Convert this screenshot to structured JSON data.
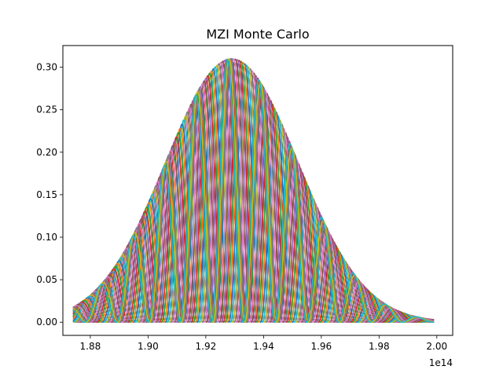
{
  "chart_data": {
    "type": "line",
    "title": "MZI Monte Carlo",
    "xlabel": "",
    "ylabel": "",
    "x_offset_label": "1e14",
    "x_scale_factor": 100000000000000.0,
    "xlim": [
      187050000000000.0,
      200550000000000.0
    ],
    "ylim": [
      -0.0155,
      0.3255
    ],
    "x_range": [
      187400000000000.0,
      199900000000000.0
    ],
    "grid": false,
    "legend": "none",
    "x_ticks": [
      188000000000000.0,
      190000000000000.0,
      192000000000000.0,
      194000000000000.0,
      196000000000000.0,
      198000000000000.0,
      200000000000000.0
    ],
    "x_tick_labels": [
      "1.88",
      "1.90",
      "1.92",
      "1.94",
      "1.96",
      "1.98",
      "2.00"
    ],
    "y_ticks": [
      0.0,
      0.05,
      0.1,
      0.15,
      0.2,
      0.25,
      0.3
    ],
    "y_tick_labels": [
      "0.00",
      "0.05",
      "0.10",
      "0.15",
      "0.20",
      "0.25",
      "0.30"
    ],
    "envelope": {
      "peak": 0.31,
      "center": 192900000000000.0,
      "sigma": 2300000000000.0
    },
    "fringe_period": 1100000000000.0,
    "series": [
      {
        "phase_offset": 0.0,
        "color": "#1f77b4"
      },
      {
        "phase_offset": 0.37,
        "color": "#ff7f0e"
      },
      {
        "phase_offset": 0.74,
        "color": "#2ca02c"
      },
      {
        "phase_offset": 1.11,
        "color": "#d62728"
      },
      {
        "phase_offset": 1.48,
        "color": "#9467bd"
      },
      {
        "phase_offset": 1.85,
        "color": "#8c564b"
      },
      {
        "phase_offset": 2.22,
        "color": "#e377c2"
      },
      {
        "phase_offset": 2.59,
        "color": "#7f7f7f"
      },
      {
        "phase_offset": 2.96,
        "color": "#bcbd22"
      },
      {
        "phase_offset": 3.33,
        "color": "#17becf"
      },
      {
        "phase_offset": 3.7,
        "color": "#1f77b4"
      },
      {
        "phase_offset": 4.07,
        "color": "#ff7f0e"
      },
      {
        "phase_offset": 4.44,
        "color": "#2ca02c"
      },
      {
        "phase_offset": 4.81,
        "color": "#d62728"
      },
      {
        "phase_offset": 5.18,
        "color": "#9467bd"
      },
      {
        "phase_offset": 5.55,
        "color": "#8c564b"
      },
      {
        "phase_offset": 5.92,
        "color": "#e377c2"
      },
      {
        "phase_offset": 0.19,
        "color": "#7f7f7f"
      },
      {
        "phase_offset": 0.56,
        "color": "#bcbd22"
      },
      {
        "phase_offset": 0.93,
        "color": "#17becf"
      }
    ]
  }
}
